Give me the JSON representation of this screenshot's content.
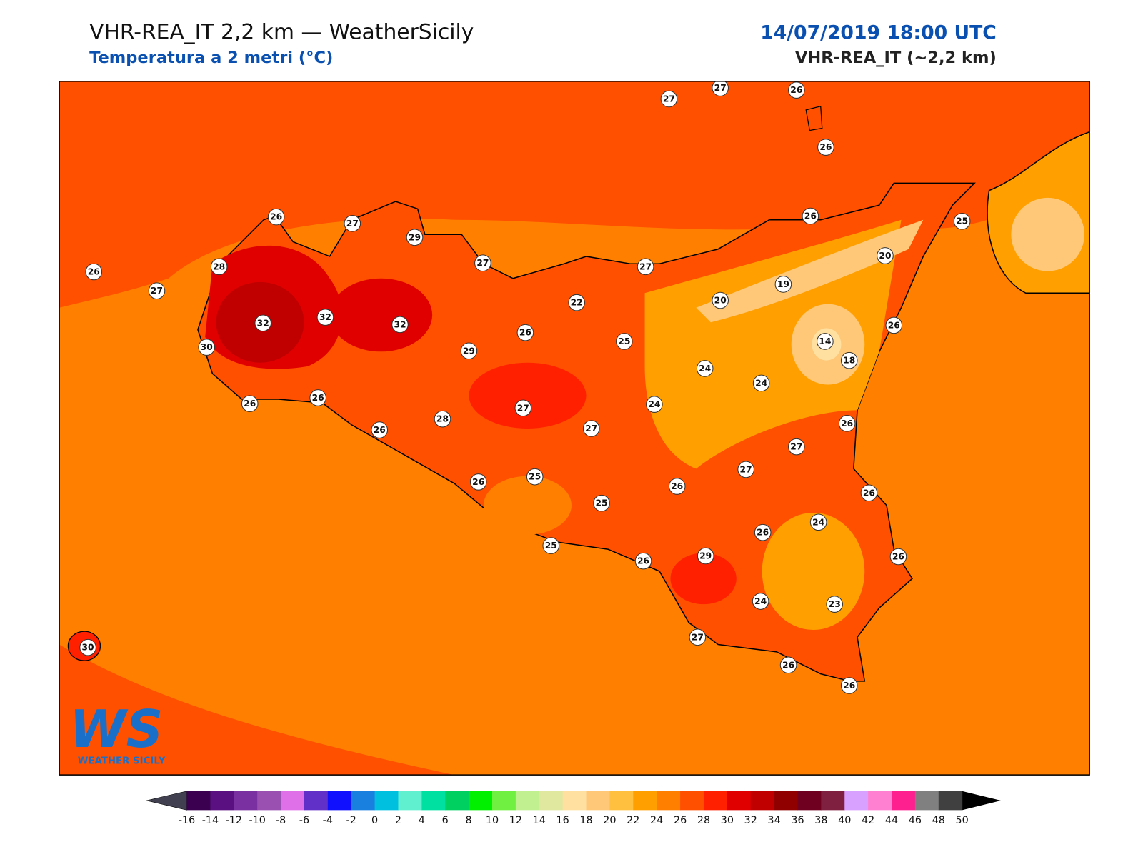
{
  "header": {
    "title": "VHR-REA_IT 2,2 km — WeatherSicily",
    "subtitle": "Temperatura a 2 metri (°C)",
    "datetime": "14/07/2019 18:00 UTC",
    "model": "VHR-REA_IT (~2,2 km)"
  },
  "logo": {
    "mark": "WS",
    "text": "Weather Sicily"
  },
  "stations": [
    27,
    27,
    26,
    26,
    26,
    27,
    29,
    26,
    25,
    26,
    28,
    27,
    27,
    20,
    27,
    19,
    22,
    20,
    32,
    32,
    32,
    26,
    26,
    25,
    14,
    30,
    29,
    18,
    24,
    24,
    26,
    26,
    24,
    27,
    26,
    26,
    28,
    27,
    27,
    27,
    26,
    25,
    26,
    26,
    25,
    24,
    26,
    25,
    29,
    26,
    26,
    24,
    23,
    30,
    27,
    26,
    26
  ],
  "colorbar": {
    "ticks": [
      -16,
      -14,
      -12,
      -10,
      -8,
      -6,
      -4,
      -2,
      0,
      2,
      4,
      6,
      8,
      10,
      12,
      14,
      16,
      18,
      20,
      22,
      24,
      26,
      28,
      30,
      32,
      34,
      36,
      38,
      40,
      42,
      44,
      46,
      48,
      50
    ],
    "colors": [
      "#3b0050",
      "#5a1080",
      "#7a30a0",
      "#9a50b0",
      "#e070e8",
      "#6030c8",
      "#1010ff",
      "#1a80e0",
      "#00c0e0",
      "#60f0d0",
      "#00e0a0",
      "#00d060",
      "#00f000",
      "#70f040",
      "#c0f090",
      "#e0e8a0",
      "#ffe0a0",
      "#ffc878",
      "#ffc040",
      "#ffa000",
      "#ff8000",
      "#ff5000",
      "#ff2000",
      "#e00000",
      "#c00000",
      "#900000",
      "#700020",
      "#802040",
      "#d8a0ff",
      "#ff80d0",
      "#ff2090",
      "#808080",
      "#404040"
    ],
    "under": "#404050",
    "over": "#000000"
  }
}
